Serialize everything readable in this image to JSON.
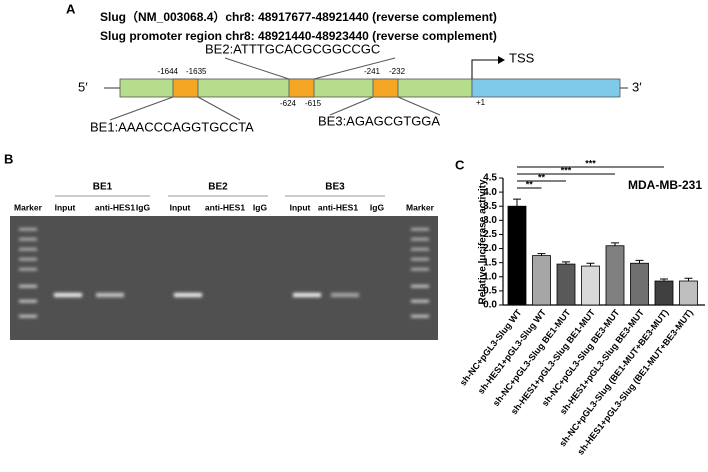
{
  "panel_a": {
    "label": "A",
    "line1": "Slug（NM_003068.4）chr8: 48917677-48921440 (reverse complement)",
    "line2": "Slug promoter region chr8: 48921440-48923440 (reverse complement)",
    "five_prime": "5′",
    "three_prime": "3′",
    "tss": "TSS",
    "plus_one": "+1",
    "be1": {
      "sequence": "BE1:AAACCCAGGTGCCTA",
      "start": "-1644",
      "end": "-1635"
    },
    "be2": {
      "sequence": "BE2:ATTTGCACGCGGCCGC",
      "start": "-624",
      "end": "-615"
    },
    "be3": {
      "sequence": "BE3:AGAGCGTGGA",
      "start": "-241",
      "end": "-232"
    }
  },
  "panel_b": {
    "label": "B",
    "groups": [
      "BE1",
      "BE2",
      "BE3"
    ],
    "lanes": [
      "Marker",
      "Input",
      "anti-HES1",
      "IgG",
      "Input",
      "anti-HES1",
      "IgG",
      "Input",
      "anti-HES1",
      "IgG",
      "Marker"
    ]
  },
  "chart_data": {
    "type": "bar",
    "panel_label": "C",
    "title": "MDA-MB-231",
    "ylabel": "Relative luciferase activity",
    "categories": [
      "sh-NC+pGL3-Slug WT",
      "sh-HES1+pGL3-Slug WT",
      "sh-NC+pGL3-Slug BE1-MUT",
      "sh-HES1+pGL3-Slug BE1-MUT",
      "sh-NC+pGL3-Slug BE3-MUT",
      "sh-HES1+pGL3-Slug BE3-MUT",
      "sh-NC+pGL3-Slug (BE1-MUT+BE3-MUT)",
      "sh-HES1+pGL3-Slug (BE1-MUT+BE3-MUT)"
    ],
    "values": [
      3.5,
      1.75,
      1.45,
      1.38,
      2.1,
      1.48,
      0.85,
      0.85
    ],
    "errors": [
      0.25,
      0.07,
      0.08,
      0.1,
      0.1,
      0.1,
      0.07,
      0.1
    ],
    "colors": [
      "#000000",
      "#a6a6a6",
      "#595959",
      "#d9d9d9",
      "#808080",
      "#707070",
      "#404040",
      "#bfbfbf"
    ],
    "ylim": [
      0,
      4.5
    ],
    "yticks": [
      {
        "value": 0,
        "label": "0.0"
      },
      0.5,
      {
        "value": 1,
        "label": "1.0"
      },
      1.5,
      {
        "value": 2,
        "label": "2.0"
      },
      2.5,
      {
        "value": 3,
        "label": "3.0"
      },
      3.5,
      {
        "value": 4,
        "label": "4.0"
      },
      4.5
    ],
    "annotations": [
      "**",
      "**",
      "***",
      "***"
    ]
  }
}
